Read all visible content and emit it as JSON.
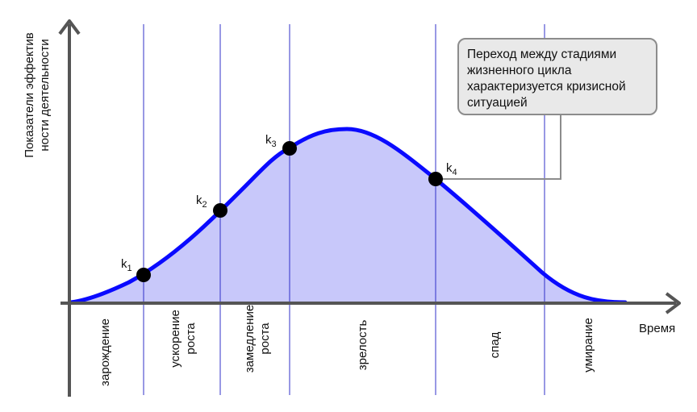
{
  "axes": {
    "x_label": "Время",
    "y_label_lines": [
      "Показатели эффектив",
      "ности деятельности"
    ]
  },
  "stages": [
    {
      "lines": [
        "зарождение"
      ]
    },
    {
      "lines": [
        "ускорение",
        "роста"
      ]
    },
    {
      "lines": [
        "замедление",
        "роста"
      ]
    },
    {
      "lines": [
        "зрелость"
      ]
    },
    {
      "lines": [
        "спад"
      ]
    },
    {
      "lines": [
        "умирание"
      ]
    }
  ],
  "points": [
    {
      "letter": "k",
      "sub": "1"
    },
    {
      "letter": "k",
      "sub": "2"
    },
    {
      "letter": "k",
      "sub": "3"
    },
    {
      "letter": "k",
      "sub": "4"
    }
  ],
  "callout": {
    "lines": [
      "Переход между стадиями",
      "жизненного цикла",
      "характеризуется кризисной",
      "ситуацией"
    ]
  },
  "colors": {
    "curve": "#0a0aff",
    "fill": "#c8c8fa",
    "divider": "#3030c8",
    "axis": "#555555",
    "point": "#000000"
  }
}
